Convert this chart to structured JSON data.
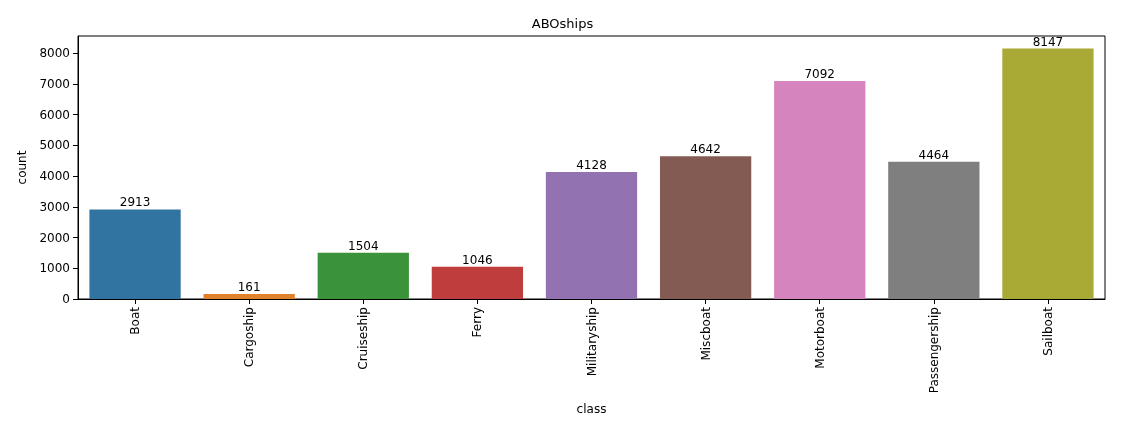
{
  "chart_data": {
    "type": "bar",
    "title": "ABOships",
    "xlabel": "class",
    "ylabel": "count",
    "categories": [
      "Boat",
      "Cargoship",
      "Cruiseship",
      "Ferry",
      "Militaryship",
      "Miscboat",
      "Motorboat",
      "Passengership",
      "Sailboat"
    ],
    "values": [
      2913,
      161,
      1504,
      1046,
      4128,
      4642,
      7092,
      4464,
      8147
    ],
    "colors": [
      "#3274a1",
      "#e1812c",
      "#3a923a",
      "#c03d3e",
      "#9372b2",
      "#845b53",
      "#d684bd",
      "#7f7f7f",
      "#a9aa35"
    ],
    "ylim": [
      0,
      8554
    ],
    "yticks": [
      0,
      1000,
      2000,
      3000,
      4000,
      5000,
      6000,
      7000,
      8000
    ],
    "data_labels": true,
    "grid": false
  }
}
